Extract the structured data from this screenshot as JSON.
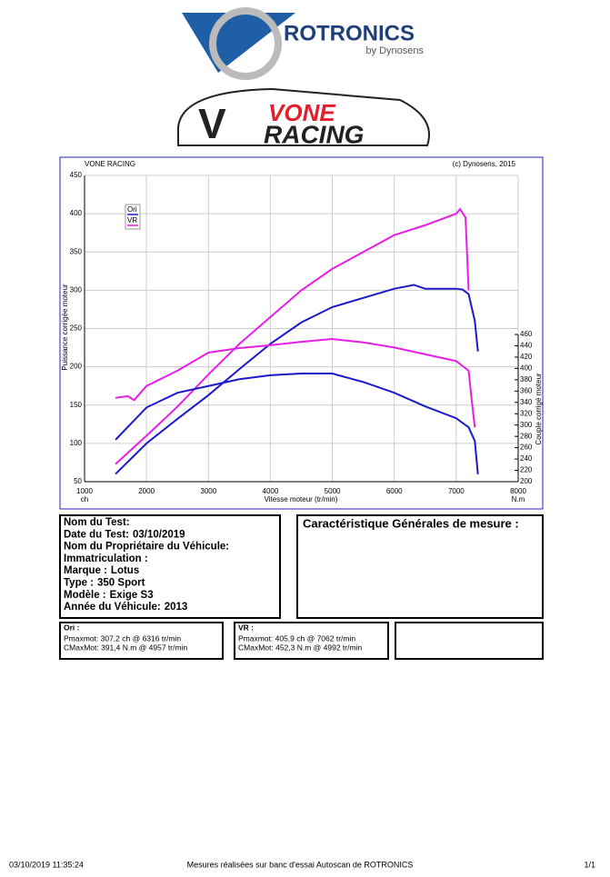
{
  "header": {
    "brand": "ROTRONICS",
    "brand_sub": "by Dynosens",
    "client_top": "VONE",
    "client_bottom": "RACING"
  },
  "chart_data": {
    "type": "line",
    "title": "VONE RACING",
    "copyright": "(c) Dynosens, 2015",
    "xlabel": "Vitesse moteur (tr/min)",
    "ylabel": "Puissance corrigée moteur",
    "y2label": "Couple corrigé moteur",
    "yunit": "ch",
    "y2unit": "N.m",
    "xlim": [
      1000,
      8000
    ],
    "xticks": [
      1000,
      2000,
      3000,
      4000,
      5000,
      6000,
      7000,
      8000
    ],
    "ylim": [
      50,
      450
    ],
    "yticks": [
      50,
      100,
      150,
      200,
      250,
      300,
      350,
      400,
      450
    ],
    "y2lim": [
      200,
      741
    ],
    "y2ticks": [
      200,
      220,
      240,
      260,
      280,
      300,
      320,
      340,
      360,
      380,
      400,
      420,
      440,
      460
    ],
    "grid": true,
    "legend": "top-left",
    "series": [
      {
        "name": "Ori",
        "color": "#1a1acc",
        "x": [
          1500,
          2000,
          2500,
          3000,
          3500,
          4000,
          4500,
          5000,
          5500,
          6000,
          6316,
          6500,
          7000,
          7100,
          7200,
          7300,
          7350
        ],
        "values": [
          60,
          100,
          132,
          163,
          197,
          230,
          258,
          278,
          290,
          302,
          307,
          302,
          302,
          301,
          295,
          260,
          220
        ]
      },
      {
        "name": "VR",
        "color": "#e61ee6",
        "x": [
          1500,
          2000,
          2500,
          3000,
          3500,
          4000,
          4500,
          5000,
          5500,
          6000,
          6500,
          7000,
          7062,
          7150,
          7200
        ],
        "values": [
          73,
          110,
          148,
          190,
          230,
          265,
          300,
          328,
          350,
          372,
          385,
          400,
          406,
          395,
          300
        ]
      },
      {
        "name": "Ori",
        "color": "#1a1acc",
        "axis": "y2",
        "x": [
          1500,
          2000,
          2500,
          3000,
          3500,
          4000,
          4500,
          4957,
          5000,
          5500,
          6000,
          6500,
          7000,
          7200,
          7300,
          7350
        ],
        "values": [
          274,
          331,
          357,
          369,
          381,
          388,
          391,
          391,
          391,
          376,
          357,
          333,
          312,
          296,
          272,
          213
        ]
      },
      {
        "name": "VR",
        "color": "#e61ee6",
        "axis": "y2",
        "x": [
          1500,
          1700,
          1800,
          2000,
          2500,
          3000,
          3500,
          4000,
          4500,
          4992,
          5500,
          6000,
          6500,
          7000,
          7200,
          7250,
          7300
        ],
        "values": [
          348,
          351,
          344,
          369,
          396,
          428,
          436,
          441,
          447,
          452,
          446,
          437,
          425,
          413,
          396,
          344,
          296
        ]
      }
    ]
  },
  "vehicle": {
    "fields": [
      {
        "label": "Nom du Test:",
        "value": ""
      },
      {
        "label": "Date du Test:",
        "value": "03/10/2019"
      },
      {
        "label": "Nom du Propriétaire du Véhicule:",
        "value": ""
      },
      {
        "label": "Immatriculation  :",
        "value": ""
      },
      {
        "label": "Marque  :",
        "value": "Lotus"
      },
      {
        "label": "Type  :",
        "value": "350 Sport"
      },
      {
        "label": "Modèle  :",
        "value": "Exige S3"
      },
      {
        "label": "Année du Véhicule:",
        "value": "2013"
      }
    ],
    "measure_title": "Caractéristique Générales de mesure :"
  },
  "results": [
    {
      "name": "Ori :",
      "lines": [
        "Pmaxmot: 307,2 ch @ 6316 tr/min",
        "CMaxMot: 391,4 N.m @ 4957 tr/min"
      ]
    },
    {
      "name": "VR :",
      "lines": [
        "Pmaxmot: 405,9 ch @ 7062 tr/min",
        "CMaxMot: 452,3 N.m @ 4992 tr/min"
      ]
    }
  ],
  "footer": {
    "datetime": "03/10/2019 11:35:24",
    "note": "Mesures réalisées sur banc d'essai Autoscan de ROTRONICS",
    "page": "1/1"
  }
}
